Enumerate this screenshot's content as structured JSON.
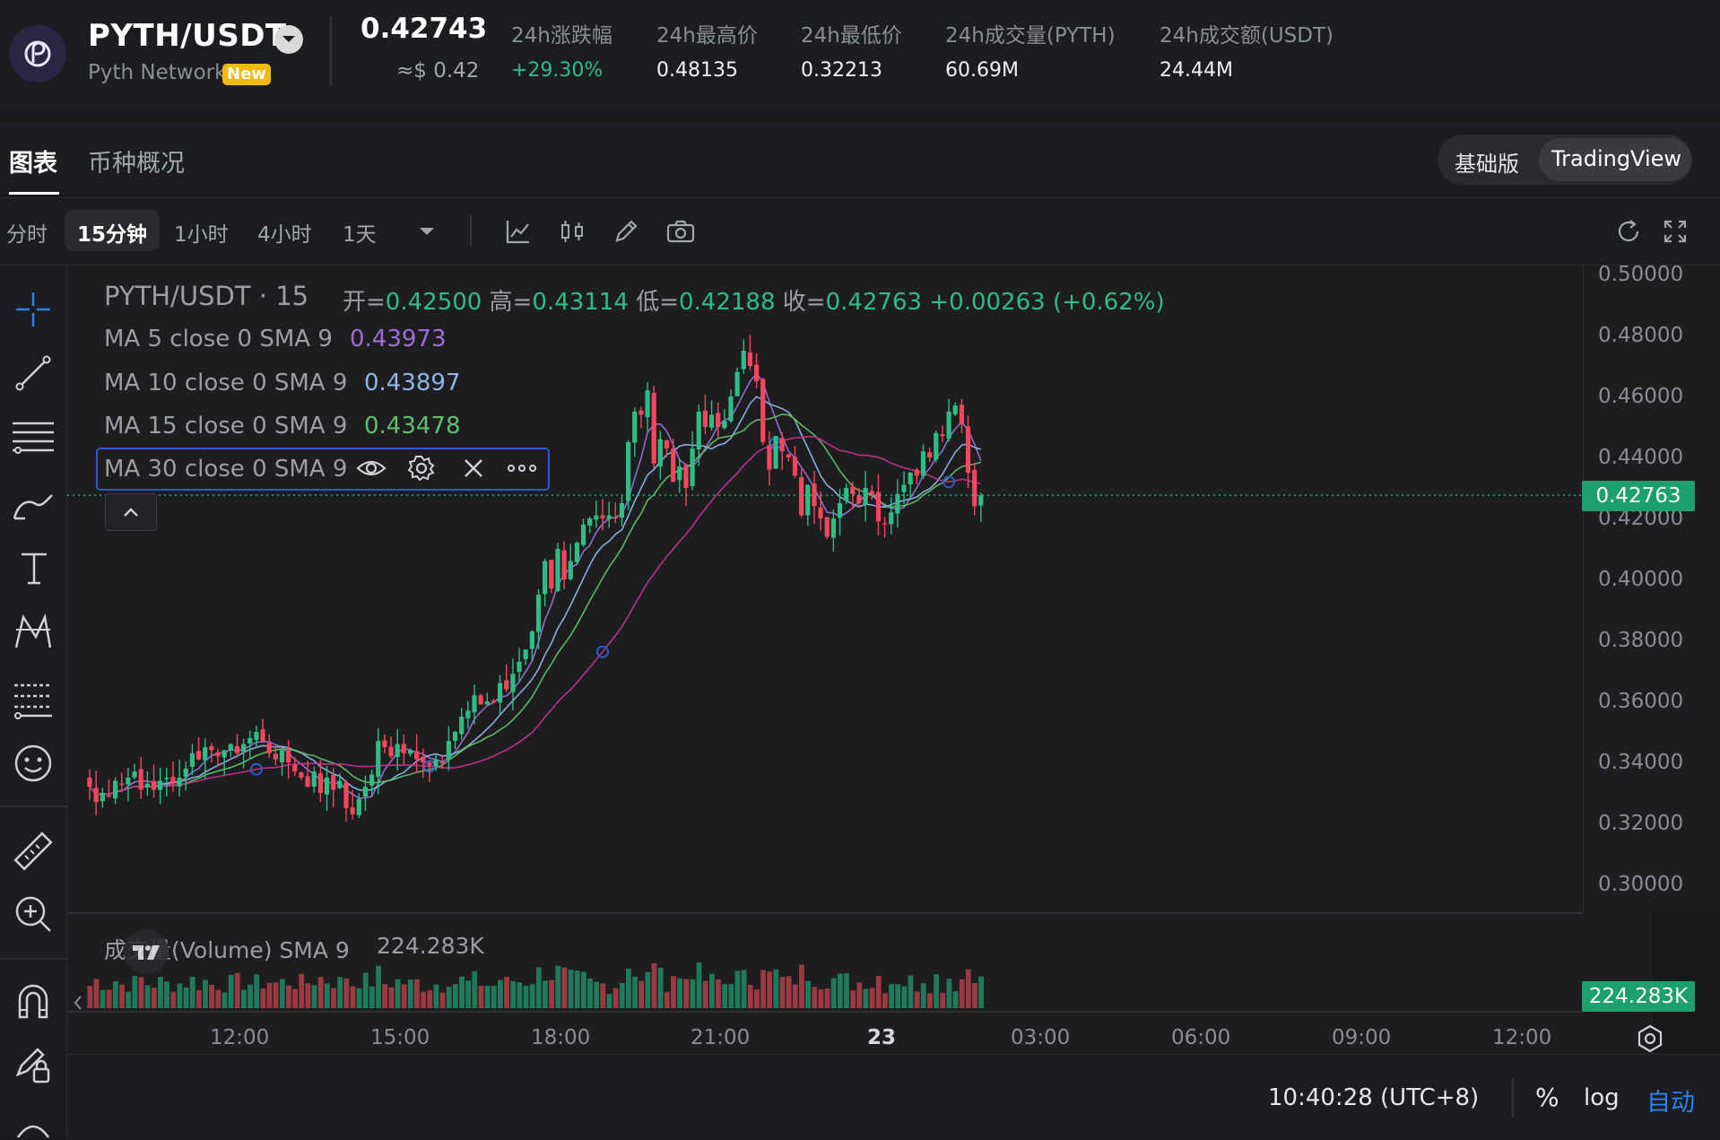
{
  "header": {
    "pair": "PYTH/USDT",
    "network": "Pyth Network",
    "new_badge": "New",
    "price": "0.42743",
    "price_usd": "≈$ 0.42",
    "stats": [
      {
        "label": "24h涨跌幅",
        "value": "+29.30%"
      },
      {
        "label": "24h最高价",
        "value": "0.48135"
      },
      {
        "label": "24h最低价",
        "value": "0.32213"
      },
      {
        "label": "24h成交量(PYTH)",
        "value": "60.69M"
      },
      {
        "label": "24h成交额(USDT)",
        "value": "24.44M"
      }
    ]
  },
  "tabs": {
    "chart": "图表",
    "overview": "币种概况"
  },
  "version_toggle": {
    "basic": "基础版",
    "tradingview": "TradingView"
  },
  "timeframes": [
    "分时",
    "15分钟",
    "1小时",
    "4小时",
    "1天"
  ],
  "active_timeframe": "15分钟",
  "legend": {
    "title": "PYTH/USDT · 15",
    "ohlc": {
      "open_label": "开=",
      "open": "0.42500",
      "high_label": "高=",
      "high": "0.43114",
      "low_label": "低=",
      "low": "0.42188",
      "close_label": "收=",
      "close": "0.42763",
      "change": "+0.00263 (+0.62%)"
    },
    "ma": [
      {
        "label": "MA 5 close 0 SMA 9",
        "value": "0.43973",
        "color": "#9b6fd3"
      },
      {
        "label": "MA 10 close 0 SMA 9",
        "value": "0.43897",
        "color": "#8fb4e6"
      },
      {
        "label": "MA 15 close 0 SMA 9",
        "value": "0.43478",
        "color": "#5fbf6a"
      },
      {
        "label": "MA 30 close 0 SMA 9",
        "value": "",
        "color": "#c2338a"
      }
    ],
    "volume_label": "成交量(Volume) SMA 9",
    "volume_value": "224.283K"
  },
  "price_axis": [
    "0.50000",
    "0.48000",
    "0.46000",
    "0.44000",
    "0.42000",
    "0.40000",
    "0.38000",
    "0.36000",
    "0.34000",
    "0.32000",
    "0.30000"
  ],
  "current_price_tag": "0.42763",
  "volume_tag": "224.283K",
  "time_axis": [
    "12:00",
    "15:00",
    "18:00",
    "21:00",
    "23",
    "03:00",
    "06:00",
    "09:00",
    "12:00"
  ],
  "clock": "10:40:28 (UTC+8)",
  "scale_options": {
    "percent": "%",
    "log": "log",
    "auto": "自动"
  },
  "colors": {
    "up": "#2ebd85",
    "down": "#f6465d",
    "accent": "#2f80ed",
    "bg": "#1e1e21"
  },
  "chart_data": {
    "type": "candlestick",
    "interval": "15m",
    "ylim": [
      0.3,
      0.5
    ],
    "x_ticks": [
      "12:00",
      "15:00",
      "18:00",
      "21:00",
      "23",
      "03:00",
      "06:00",
      "09:00",
      "12:00"
    ],
    "candles_close": [
      0.332,
      0.327,
      0.33,
      0.329,
      0.334,
      0.333,
      0.335,
      0.337,
      0.331,
      0.333,
      0.331,
      0.334,
      0.335,
      0.333,
      0.335,
      0.338,
      0.343,
      0.341,
      0.345,
      0.344,
      0.342,
      0.344,
      0.346,
      0.343,
      0.346,
      0.348,
      0.35,
      0.347,
      0.343,
      0.341,
      0.344,
      0.34,
      0.337,
      0.335,
      0.332,
      0.337,
      0.33,
      0.335,
      0.331,
      0.334,
      0.325,
      0.323,
      0.328,
      0.332,
      0.336,
      0.347,
      0.345,
      0.342,
      0.346,
      0.343,
      0.344,
      0.341,
      0.34,
      0.339,
      0.341,
      0.34,
      0.347,
      0.35,
      0.355,
      0.357,
      0.362,
      0.359,
      0.36,
      0.36,
      0.366,
      0.364,
      0.369,
      0.373,
      0.377,
      0.383,
      0.395,
      0.406,
      0.397,
      0.41,
      0.4,
      0.406,
      0.412,
      0.418,
      0.42,
      0.421,
      0.42,
      0.421,
      0.42,
      0.425,
      0.445,
      0.455,
      0.454,
      0.462,
      0.438,
      0.446,
      0.443,
      0.432,
      0.437,
      0.43,
      0.443,
      0.455,
      0.45,
      0.454,
      0.45,
      0.452,
      0.46,
      0.468,
      0.475,
      0.47,
      0.465,
      0.445,
      0.436,
      0.447,
      0.442,
      0.44,
      0.434,
      0.421,
      0.431,
      0.424,
      0.42,
      0.414,
      0.42,
      0.425,
      0.43,
      0.428,
      0.425,
      0.43,
      0.428,
      0.419,
      0.418,
      0.422,
      0.428,
      0.431,
      0.435,
      0.434,
      0.442,
      0.44,
      0.448,
      0.447,
      0.455,
      0.457,
      0.451,
      0.435,
      0.424,
      0.4276
    ],
    "volume_sma": 224283
  }
}
